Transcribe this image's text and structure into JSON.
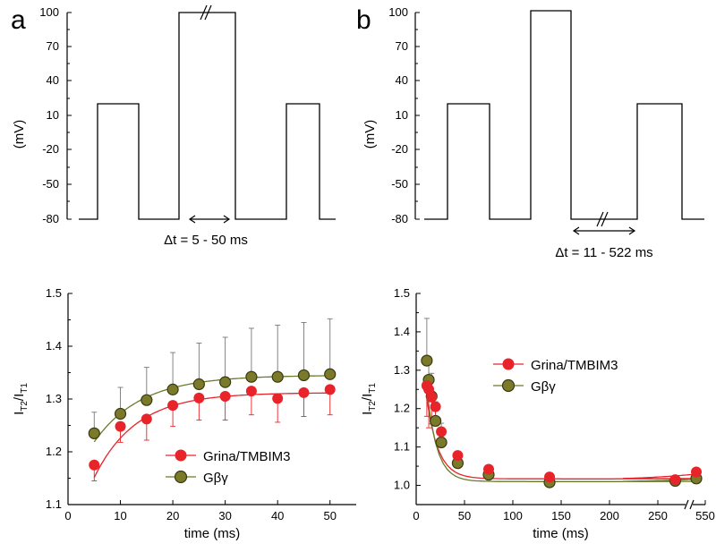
{
  "panels": {
    "a": "a",
    "b": "b"
  },
  "protocol_a": {
    "ylabel": "(mV)",
    "y_ticks": [
      "100",
      "70",
      "40",
      "10",
      "-20",
      "-50",
      "-80"
    ],
    "levels_mV": [
      -80,
      20,
      -80,
      100,
      -80,
      20,
      -80
    ],
    "delta_label": "Δt = 5 - 50 ms"
  },
  "protocol_b": {
    "ylabel": "(mV)",
    "y_ticks": [
      "100",
      "70",
      "40",
      "10",
      "-20",
      "-50",
      "-80"
    ],
    "levels_mV": [
      -80,
      20,
      -80,
      100,
      -80,
      20,
      -80
    ],
    "delta_label": "Δt = 11 - 522 ms"
  },
  "colors": {
    "grina": "#e8242a",
    "gbg": "#7a7a2a",
    "gbg_line": "#6b7a28"
  },
  "chart_data": [
    {
      "type": "scatter",
      "xlabel": "time (ms)",
      "ylabel_main": "I",
      "ylabel_sub1": "T2",
      "ylabel_slash": "/I",
      "ylabel_sub2": "T1",
      "xlim": [
        0,
        55
      ],
      "ylim": [
        1.1,
        1.5
      ],
      "x_ticks": [
        "0",
        "10",
        "20",
        "30",
        "40",
        "50"
      ],
      "y_ticks": [
        "1.1",
        "1.2",
        "1.3",
        "1.4",
        "1.5"
      ],
      "legend": [
        "Grina/TMBIM3",
        "Gβγ"
      ],
      "series": [
        {
          "name": "Grina/TMBIM3",
          "x": [
            5,
            10,
            15,
            20,
            25,
            30,
            35,
            40,
            45,
            50
          ],
          "y": [
            1.175,
            1.248,
            1.262,
            1.288,
            1.302,
            1.305,
            1.315,
            1.301,
            1.312,
            1.318
          ],
          "err": [
            0.03,
            0.03,
            0.04,
            0.04,
            0.042,
            0.045,
            0.045,
            0.045,
            0.045,
            0.048
          ]
        },
        {
          "name": "Gβγ",
          "x": [
            5,
            10,
            15,
            20,
            25,
            30,
            35,
            40,
            45,
            50
          ],
          "y": [
            1.235,
            1.272,
            1.298,
            1.318,
            1.328,
            1.332,
            1.342,
            1.342,
            1.345,
            1.347
          ],
          "err": [
            0.04,
            0.05,
            0.062,
            0.07,
            0.078,
            0.085,
            0.092,
            0.098,
            0.1,
            0.105
          ]
        }
      ]
    },
    {
      "type": "scatter",
      "xlabel": "time (ms)",
      "ylabel_main": "I",
      "ylabel_sub1": "T2",
      "ylabel_slash": "/I",
      "ylabel_sub2": "T1",
      "xlim": [
        0,
        550
      ],
      "axis_break_at": 290,
      "ylim": [
        0.95,
        1.5
      ],
      "x_ticks": [
        "0",
        "50",
        "100",
        "150",
        "200",
        "250",
        "550"
      ],
      "y_ticks": [
        "1.0",
        "1.1",
        "1.2",
        "1.3",
        "1.4",
        "1.5"
      ],
      "legend": [
        "Grina/TMBIM3",
        "Gβγ"
      ],
      "series": [
        {
          "name": "Grina/TMBIM3",
          "x": [
            11,
            13,
            16,
            20,
            26,
            43,
            75,
            138,
            268,
            522
          ],
          "y": [
            1.26,
            1.25,
            1.23,
            1.205,
            1.14,
            1.078,
            1.042,
            1.022,
            1.015,
            1.035
          ],
          "err": [
            0.08,
            0.1,
            0.07,
            0.05,
            0.03,
            0.02,
            0.01,
            0.008,
            0.006,
            0.006
          ]
        },
        {
          "name": "Gβγ",
          "x": [
            11,
            13,
            16,
            20,
            26,
            43,
            75,
            138,
            268,
            522
          ],
          "y": [
            1.325,
            1.275,
            1.232,
            1.168,
            1.112,
            1.058,
            1.028,
            1.008,
            1.012,
            1.018
          ],
          "err": [
            0.11,
            0.06,
            0.06,
            0.05,
            0.05,
            0.02,
            0.01,
            0.008,
            0.006,
            0.006
          ]
        }
      ]
    }
  ]
}
